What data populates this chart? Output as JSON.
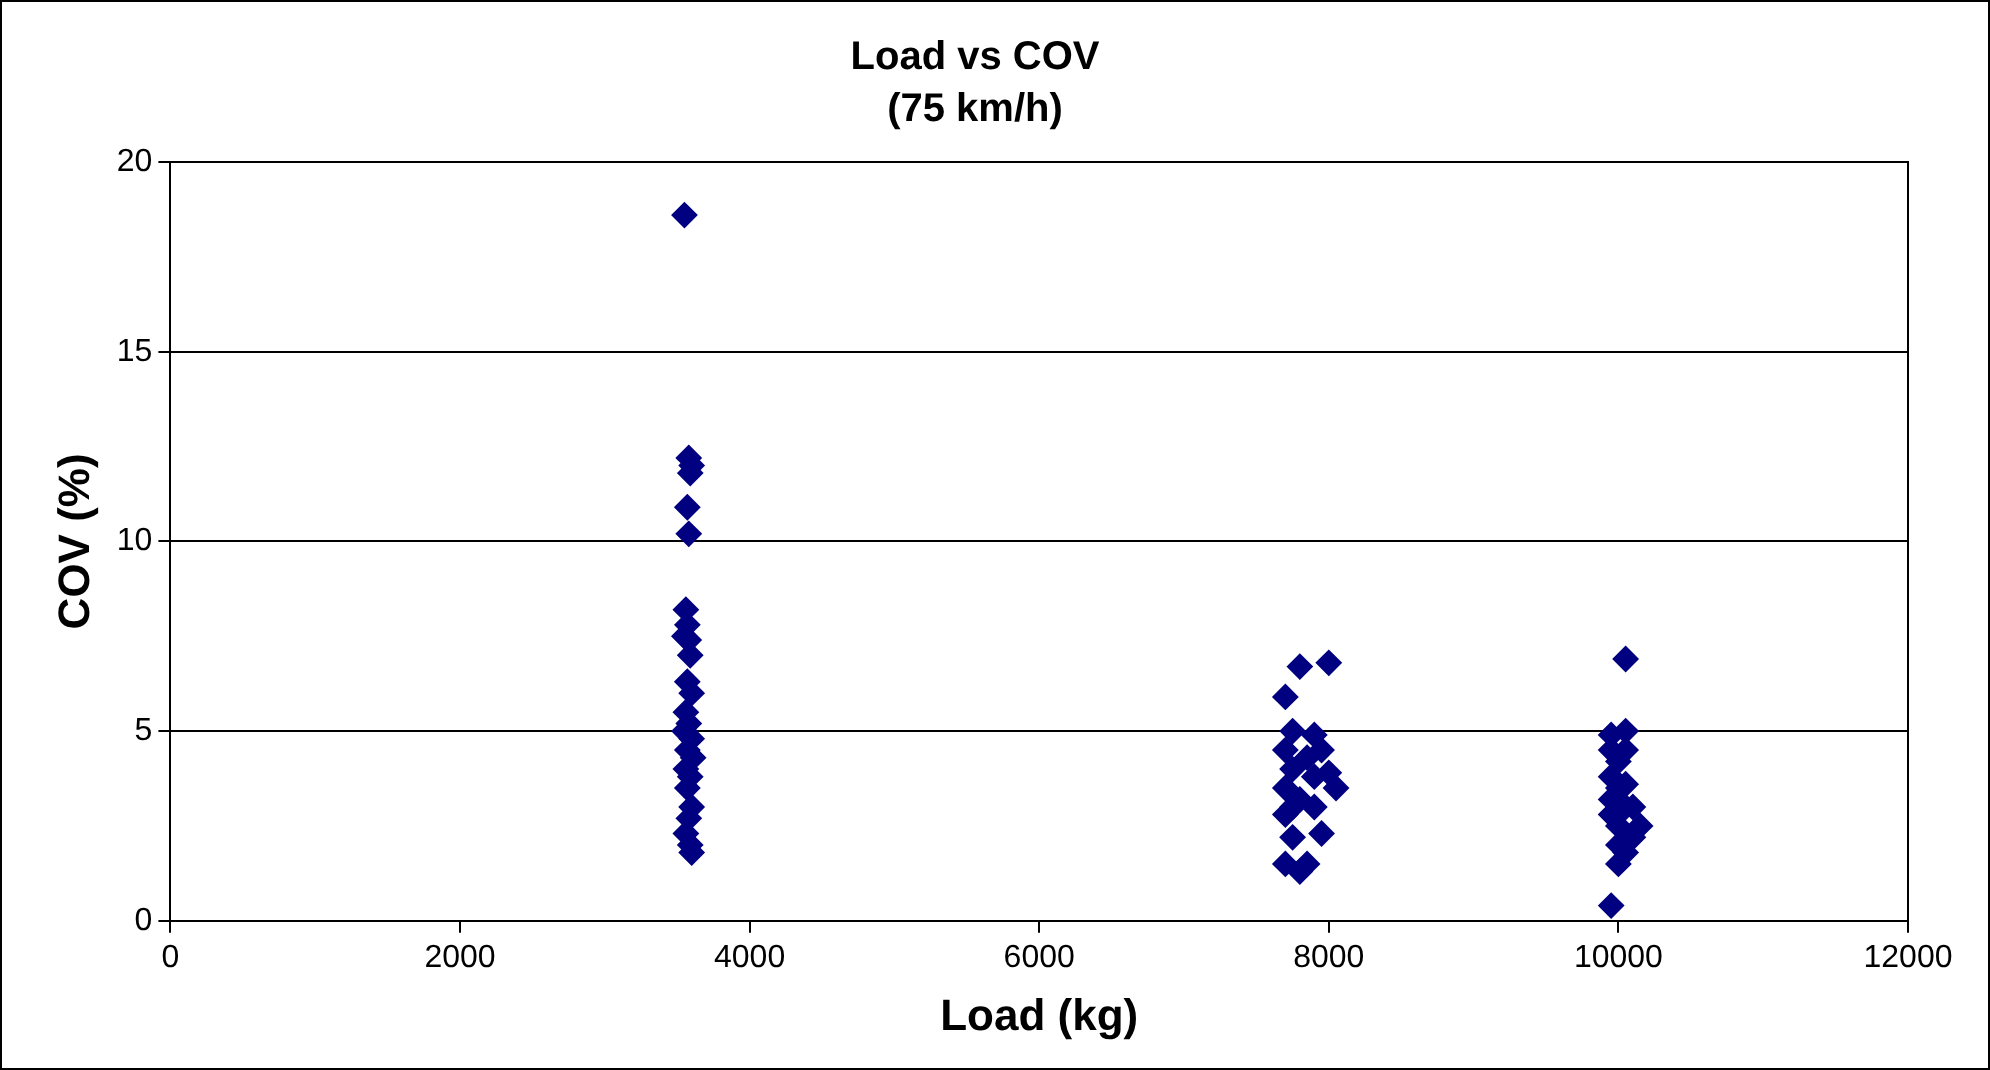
{
  "chart_data": {
    "type": "scatter",
    "title": "Load vs COV",
    "subtitle": "(75 km/h)",
    "xlabel": "Load (kg)",
    "ylabel": "COV (%)",
    "series": [
      {
        "color": "#000080",
        "x": [
          3550,
          3580,
          3600,
          3590,
          3570,
          3580,
          3560,
          3570,
          3550,
          3580,
          3590,
          3570,
          3600,
          3560,
          3580,
          3550,
          3600,
          3570,
          3610,
          3560,
          3590,
          3570,
          3600,
          3580,
          3560,
          3590,
          3600,
          7700,
          7750,
          7800,
          8000,
          7700,
          7900,
          7750,
          7850,
          7950,
          7700,
          7800,
          8050,
          8000,
          7900,
          7700,
          7750,
          7950,
          7700,
          7800,
          7850,
          7900,
          7750,
          10050,
          9950,
          10050,
          9950,
          10000,
          10050,
          9950,
          10000,
          9950,
          10050,
          9950,
          10000,
          10100,
          10150,
          10100,
          10050,
          10000,
          9950,
          10050,
          10000
        ],
        "values": [
          18.6,
          12.2,
          12.0,
          11.8,
          10.9,
          10.2,
          8.2,
          7.8,
          7.5,
          7.4,
          7.0,
          6.3,
          6.0,
          5.5,
          5.2,
          5.0,
          4.8,
          4.5,
          4.3,
          4.0,
          3.8,
          3.5,
          3.0,
          2.7,
          2.3,
          2.0,
          1.8,
          5.9,
          5.0,
          6.7,
          6.8,
          4.5,
          4.9,
          4.0,
          4.3,
          4.5,
          3.5,
          3.2,
          3.5,
          3.9,
          3.0,
          2.8,
          2.2,
          2.3,
          1.5,
          1.3,
          1.5,
          3.8,
          3.0,
          6.9,
          4.9,
          5.0,
          4.5,
          4.2,
          4.5,
          3.8,
          3.5,
          3.2,
          3.6,
          2.8,
          2.5,
          3.0,
          2.5,
          2.2,
          1.8,
          1.5,
          0.4,
          3.0,
          2.0
        ]
      }
    ],
    "xlim": [
      0,
      12000
    ],
    "xticks": [
      0,
      2000,
      4000,
      6000,
      8000,
      10000,
      12000
    ],
    "ylim": [
      0,
      20
    ],
    "yticks": [
      0,
      5,
      10,
      15,
      20
    ],
    "grid": "y",
    "marker": "diamond",
    "legend": false
  }
}
